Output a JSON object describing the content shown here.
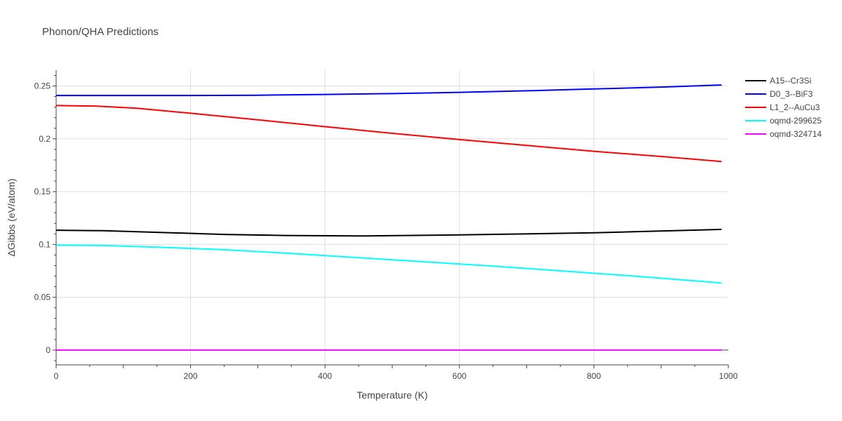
{
  "chart_data": {
    "type": "line",
    "title": "Phonon/QHA Predictions",
    "xlabel": "Temperature (K)",
    "ylabel": "ΔGibbs (eV/atom)",
    "xlim": [
      0,
      1000
    ],
    "ylim": [
      -0.014,
      0.265
    ],
    "x_ticks": [
      0,
      200,
      400,
      600,
      800,
      1000
    ],
    "x_tick_labels": [
      "0",
      "200",
      "400",
      "600",
      "800",
      "1000"
    ],
    "y_ticks": [
      0,
      0.05,
      0.1,
      0.15,
      0.2,
      0.25
    ],
    "y_tick_labels": [
      "0",
      "0.05",
      "0.1",
      "0.15",
      "0.2",
      "0.25"
    ],
    "grid": true,
    "legend_position": "top-right",
    "series": [
      {
        "name": "A15--Cr3Si",
        "color": "#000000",
        "x": [
          0,
          70,
          150,
          250,
          340,
          460,
          600,
          800,
          990
        ],
        "y": [
          0.1135,
          0.113,
          0.1115,
          0.1095,
          0.1085,
          0.108,
          0.109,
          0.111,
          0.1143
        ]
      },
      {
        "name": "D0_3--BiF3",
        "color": "#0000ff",
        "x": [
          0,
          100,
          200,
          300,
          400,
          500,
          600,
          700,
          800,
          900,
          990
        ],
        "y": [
          0.241,
          0.241,
          0.241,
          0.2413,
          0.242,
          0.2428,
          0.244,
          0.2455,
          0.2472,
          0.249,
          0.251
        ]
      },
      {
        "name": "L1_2--AuCu3",
        "color": "#ff0000",
        "x": [
          0,
          60,
          120,
          200,
          300,
          400,
          500,
          600,
          700,
          800,
          900,
          990
        ],
        "y": [
          0.2315,
          0.231,
          0.229,
          0.2242,
          0.218,
          0.2115,
          0.2052,
          0.1993,
          0.1938,
          0.1882,
          0.1833,
          0.1785
        ]
      },
      {
        "name": "oqmd-299625",
        "color": "#00ffff",
        "x": [
          0,
          70,
          150,
          250,
          350,
          450,
          550,
          650,
          750,
          850,
          990
        ],
        "y": [
          0.0993,
          0.099,
          0.0975,
          0.095,
          0.0915,
          0.0875,
          0.0835,
          0.0795,
          0.075,
          0.0705,
          0.0635
        ]
      },
      {
        "name": "oqmd-324714",
        "color": "#ff00ff",
        "x": [
          0,
          990
        ],
        "y": [
          0,
          0
        ]
      }
    ]
  }
}
